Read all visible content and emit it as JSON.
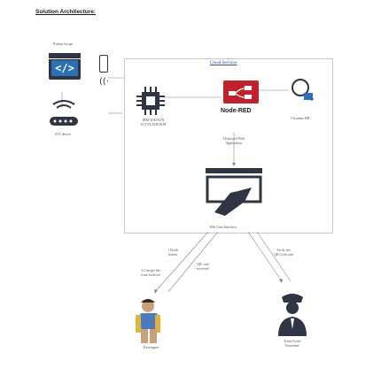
{
  "title": "Solution Architecture:",
  "labels": {
    "python_script": "Python Script",
    "iot_device": "IOT device",
    "ibm_watson_line1": "IBM WATSON",
    "ibm_watson_line2": "IOT PLATFORM",
    "cloud_services": "Cloud Services",
    "node_red": "Node-RED",
    "cloudant_db": "Cloudant DB",
    "deployed_web_line1": "Deployed Web",
    "deployed_web_line2": "Application",
    "web_ui": "Web User Interface",
    "step1_line1": "1.Book",
    "step1_line2": "tickets",
    "step2_line1": "2.Can get the",
    "step2_line2": "train location",
    "qr_code_line1": "QR code",
    "qr_code_line2": "received",
    "verify_line1": "Verify the",
    "verify_line2": "QR Code and",
    "passengers": "Passengers",
    "examiner_line1": "Train Ticket",
    "examiner_line2": "Examiner"
  },
  "colors": {
    "icon_dark": "#2f3542",
    "icon_red": "#c0212b",
    "icon_blue": "#2d6fb5",
    "border": "#c8c8c8",
    "arrow": "#888888"
  },
  "icons": [
    "code-window-icon",
    "phone-icon",
    "wifi-icon",
    "iot-device-icon",
    "chip-icon",
    "node-red-icon",
    "cloudant-icon",
    "web-ui-icon",
    "passenger-icon",
    "examiner-icon"
  ]
}
